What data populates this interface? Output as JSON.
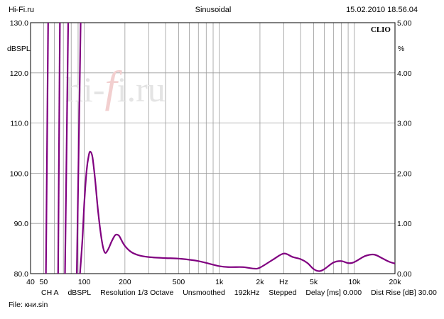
{
  "header": {
    "left": "Hi-Fi.ru",
    "center": "Sinusoidal",
    "right": "15.02.2010 18.56.04"
  },
  "chart_data": {
    "type": "line",
    "brand": "CLIO",
    "watermark": {
      "pre": "hi-",
      "mid": "f",
      "post": "i.ru"
    },
    "x_scale": "log",
    "xlim": [
      40,
      20000
    ],
    "x_ticks": [
      {
        "v": 40,
        "label": "40"
      },
      {
        "v": 50,
        "label": "50"
      },
      {
        "v": 100,
        "label": "100"
      },
      {
        "v": 200,
        "label": "200"
      },
      {
        "v": 500,
        "label": "500"
      },
      {
        "v": 1000,
        "label": "1k"
      },
      {
        "v": 2000,
        "label": "2k"
      },
      {
        "v": 3000,
        "label": "Hz"
      },
      {
        "v": 5000,
        "label": "5k"
      },
      {
        "v": 10000,
        "label": "10k"
      },
      {
        "v": 20000,
        "label": "20k"
      }
    ],
    "ylim": [
      80,
      130
    ],
    "y_ticks": [
      "80.0",
      "90.0",
      "100.0",
      "110.0",
      "120.0",
      "130.0"
    ],
    "y_unit_label": "dBSPL",
    "ylim_right": [
      0,
      5
    ],
    "y_ticks_right": [
      "0.00",
      "1.00",
      "2.00",
      "3.00",
      "4.00",
      "5.00"
    ],
    "y_unit_label_right": "%",
    "grid": true,
    "line_color": "#800080",
    "spikes": [
      {
        "x": [
          52,
          54
        ],
        "y": [
          80,
          130
        ]
      },
      {
        "x": [
          64,
          66
        ],
        "y": [
          80,
          130
        ]
      },
      {
        "x": [
          72,
          76
        ],
        "y": [
          80,
          130
        ]
      },
      {
        "x": [
          88,
          94
        ],
        "y": [
          80,
          130
        ]
      }
    ],
    "series": [
      {
        "x": [
          93,
          97,
          100,
          104,
          108,
          111,
          115,
          120,
          127,
          135,
          142,
          150,
          160,
          170,
          180,
          190,
          200,
          220,
          250,
          300,
          400,
          500,
          700,
          1000,
          1200,
          1500,
          1800,
          2000,
          2500,
          3000,
          3500,
          4000,
          4500,
          5000,
          5500,
          6000,
          7000,
          8000,
          9000,
          10000,
          12000,
          14000,
          16000,
          18000,
          20000
        ],
        "y": [
          80,
          87,
          94,
          100.5,
          103.6,
          104.3,
          103.2,
          99,
          92,
          86.5,
          84.2,
          84.8,
          86.5,
          87.7,
          87.6,
          86.5,
          85.5,
          84.4,
          83.7,
          83.3,
          83.1,
          83.0,
          82.5,
          81.5,
          81.3,
          81.3,
          81.0,
          81.2,
          82.8,
          84.0,
          83.3,
          82.9,
          82.1,
          80.9,
          80.5,
          80.9,
          82.2,
          82.5,
          82.1,
          82.3,
          83.5,
          83.8,
          83.1,
          82.4,
          82.0
        ]
      }
    ]
  },
  "footer": {
    "channel": "CH A",
    "unit": "dBSPL",
    "resolution": "Resolution 1/3 Octave",
    "smoothing": "Unsmoothed",
    "rate": "192kHz",
    "mode": "Stepped",
    "delay": "Delay [ms] 0.000",
    "dist_rise": "Dist Rise [dB] 30.00",
    "file": "File: кни.sin"
  }
}
